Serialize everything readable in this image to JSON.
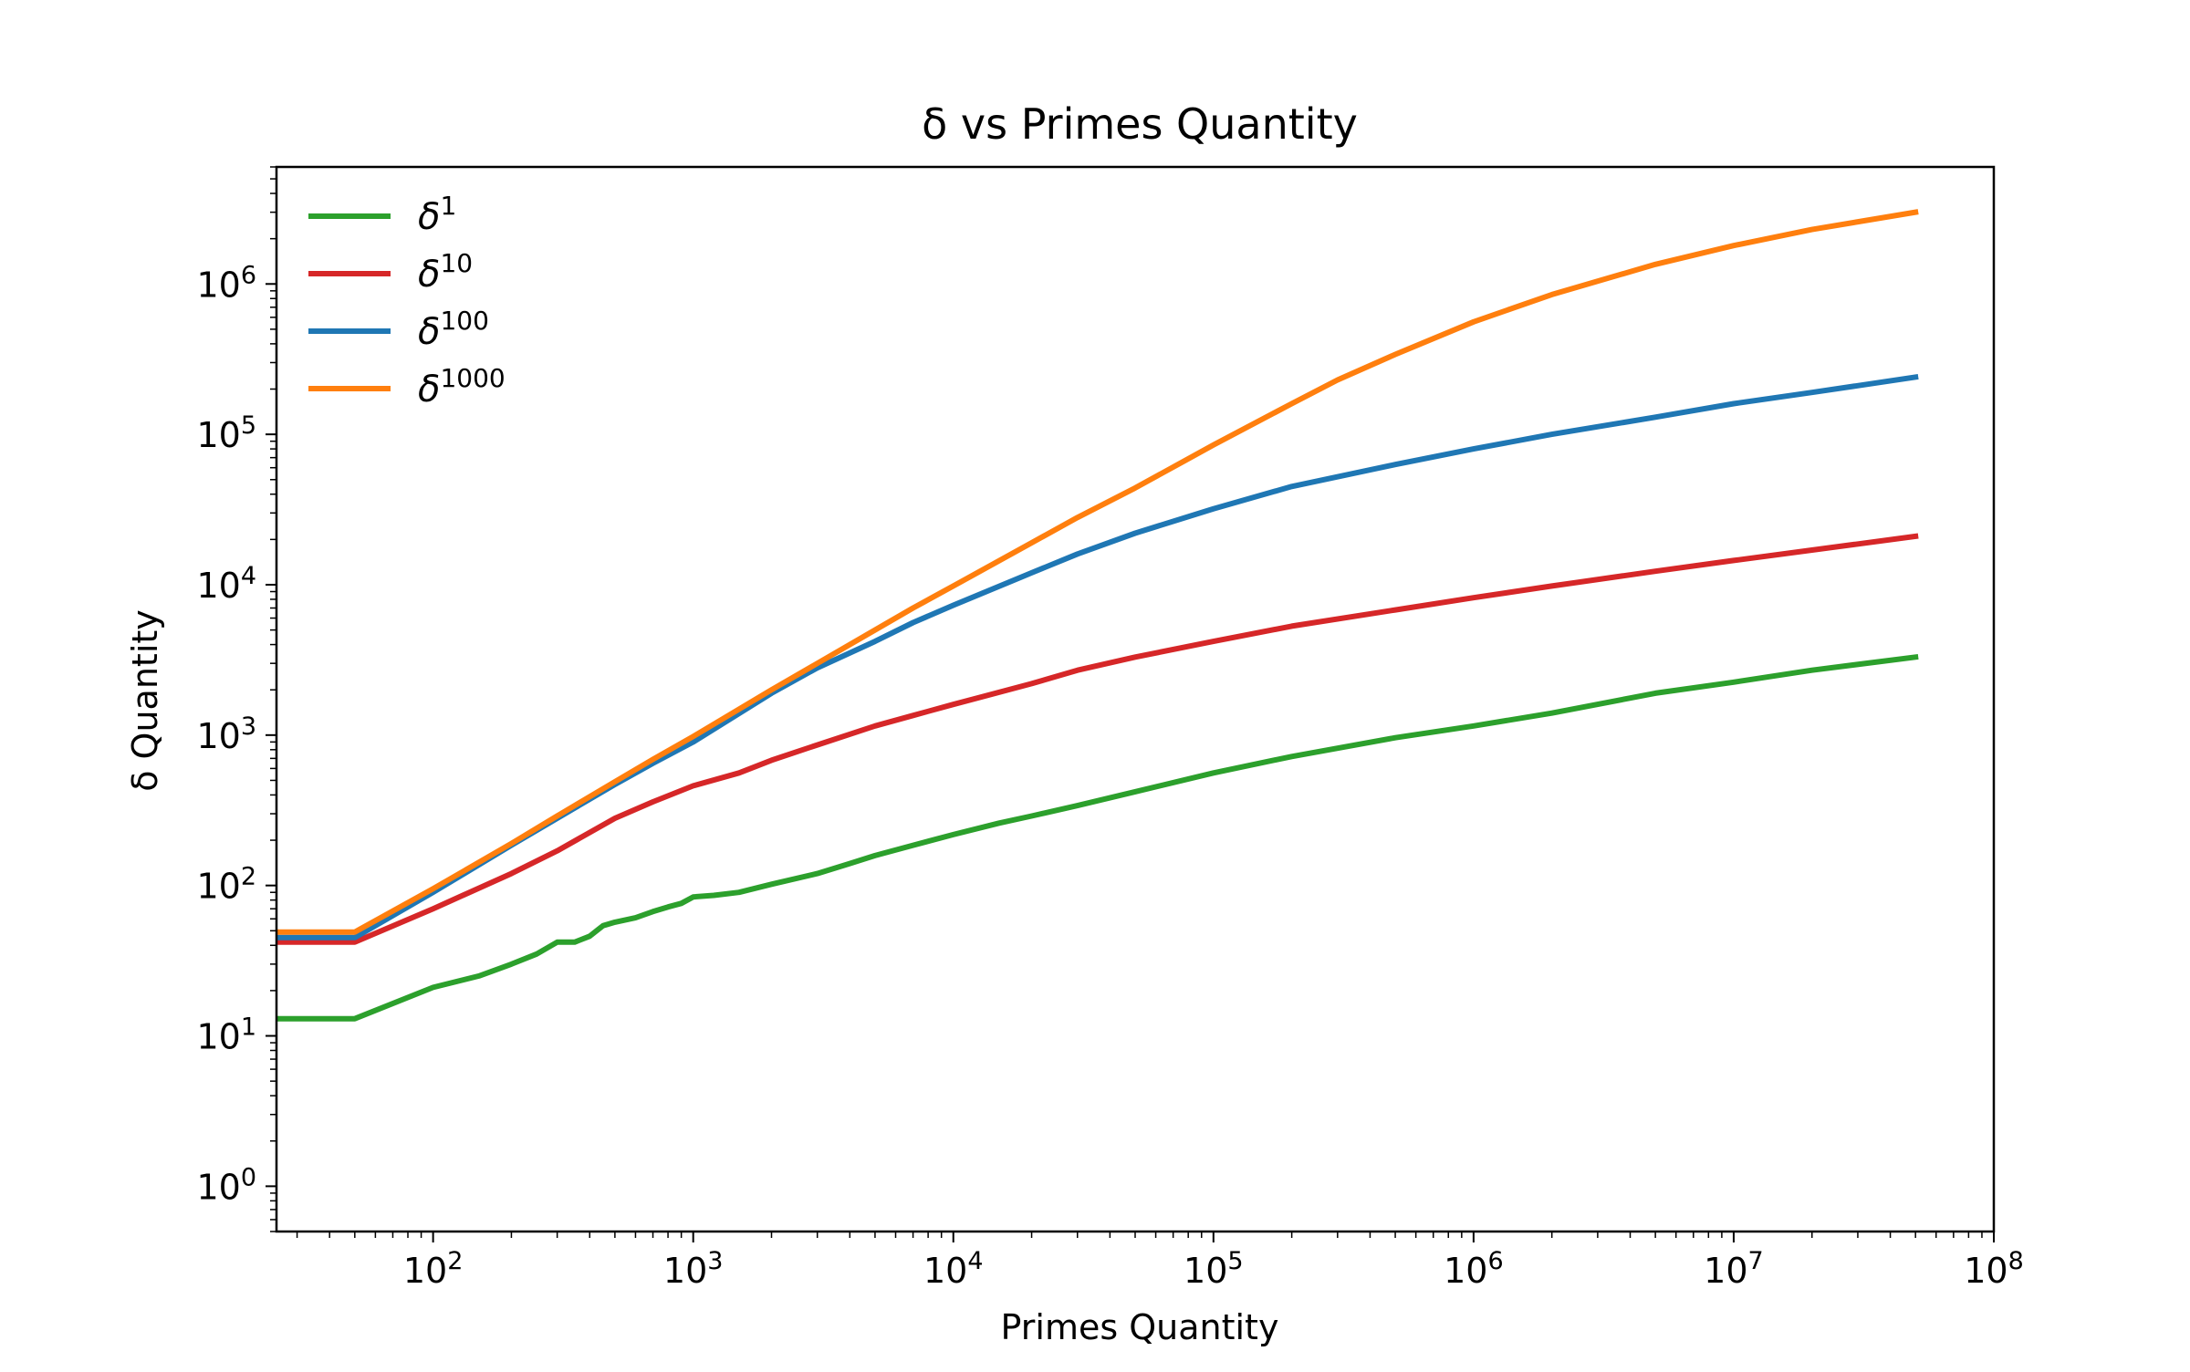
{
  "chart_data": {
    "type": "line",
    "title": "δ vs Primes Quantity",
    "xlabel": "Primes Quantity",
    "ylabel": "δ Quantity",
    "xscale": "log",
    "yscale": "log",
    "xlim": [
      25,
      100000000
    ],
    "ylim": [
      0.5,
      6000000
    ],
    "grid": false,
    "legend_position": "top-left",
    "x_ticks": [
      {
        "base": "10",
        "exp": "2",
        "value": 100
      },
      {
        "base": "10",
        "exp": "3",
        "value": 1000
      },
      {
        "base": "10",
        "exp": "4",
        "value": 10000
      },
      {
        "base": "10",
        "exp": "5",
        "value": 100000
      },
      {
        "base": "10",
        "exp": "6",
        "value": 1000000
      },
      {
        "base": "10",
        "exp": "7",
        "value": 10000000
      },
      {
        "base": "10",
        "exp": "8",
        "value": 100000000
      }
    ],
    "y_ticks": [
      {
        "base": "10",
        "exp": "0",
        "value": 1
      },
      {
        "base": "10",
        "exp": "1",
        "value": 10
      },
      {
        "base": "10",
        "exp": "2",
        "value": 100
      },
      {
        "base": "10",
        "exp": "3",
        "value": 1000
      },
      {
        "base": "10",
        "exp": "4",
        "value": 10000
      },
      {
        "base": "10",
        "exp": "5",
        "value": 100000
      },
      {
        "base": "10",
        "exp": "6",
        "value": 1000000
      }
    ],
    "series": [
      {
        "name": "δ1",
        "symbol": "δ",
        "sup": "1",
        "color": "#2ca02c",
        "points": [
          [
            25,
            13
          ],
          [
            50,
            13
          ],
          [
            100,
            21
          ],
          [
            150,
            25
          ],
          [
            200,
            30
          ],
          [
            250,
            35
          ],
          [
            300,
            42
          ],
          [
            350,
            42
          ],
          [
            400,
            46
          ],
          [
            450,
            54
          ],
          [
            500,
            57
          ],
          [
            600,
            61
          ],
          [
            700,
            67
          ],
          [
            800,
            72
          ],
          [
            900,
            76
          ],
          [
            1000,
            84
          ],
          [
            1200,
            86
          ],
          [
            1500,
            90
          ],
          [
            2000,
            102
          ],
          [
            3000,
            120
          ],
          [
            4000,
            140
          ],
          [
            5000,
            158
          ],
          [
            7000,
            185
          ],
          [
            10000,
            218
          ],
          [
            15000,
            260
          ],
          [
            20000,
            290
          ],
          [
            30000,
            340
          ],
          [
            50000,
            420
          ],
          [
            100000,
            560
          ],
          [
            200000,
            720
          ],
          [
            500000,
            960
          ],
          [
            1000000,
            1150
          ],
          [
            2000000,
            1400
          ],
          [
            5000000,
            1900
          ],
          [
            10000000,
            2250
          ],
          [
            20000000,
            2700
          ],
          [
            50000000,
            3300
          ]
        ]
      },
      {
        "name": "δ10",
        "symbol": "δ",
        "sup": "10",
        "color": "#d62728",
        "points": [
          [
            25,
            42
          ],
          [
            50,
            42
          ],
          [
            100,
            70
          ],
          [
            200,
            120
          ],
          [
            300,
            170
          ],
          [
            500,
            280
          ],
          [
            700,
            360
          ],
          [
            1000,
            460
          ],
          [
            1500,
            560
          ],
          [
            2000,
            680
          ],
          [
            3000,
            860
          ],
          [
            5000,
            1150
          ],
          [
            7000,
            1350
          ],
          [
            10000,
            1600
          ],
          [
            20000,
            2200
          ],
          [
            30000,
            2700
          ],
          [
            50000,
            3300
          ],
          [
            100000,
            4200
          ],
          [
            200000,
            5300
          ],
          [
            500000,
            6800
          ],
          [
            1000000,
            8200
          ],
          [
            2000000,
            9800
          ],
          [
            5000000,
            12300
          ],
          [
            10000000,
            14500
          ],
          [
            20000000,
            17000
          ],
          [
            50000000,
            21000
          ]
        ]
      },
      {
        "name": "δ100",
        "symbol": "δ",
        "sup": "100",
        "color": "#1f77b4",
        "points": [
          [
            25,
            45
          ],
          [
            50,
            45
          ],
          [
            100,
            90
          ],
          [
            200,
            185
          ],
          [
            300,
            280
          ],
          [
            500,
            470
          ],
          [
            700,
            650
          ],
          [
            1000,
            900
          ],
          [
            2000,
            1900
          ],
          [
            3000,
            2800
          ],
          [
            5000,
            4200
          ],
          [
            7000,
            5600
          ],
          [
            10000,
            7300
          ],
          [
            20000,
            12000
          ],
          [
            30000,
            16000
          ],
          [
            50000,
            22000
          ],
          [
            100000,
            32000
          ],
          [
            200000,
            45000
          ],
          [
            500000,
            63000
          ],
          [
            1000000,
            80000
          ],
          [
            2000000,
            100000
          ],
          [
            5000000,
            130000
          ],
          [
            10000000,
            160000
          ],
          [
            20000000,
            190000
          ],
          [
            50000000,
            240000
          ]
        ]
      },
      {
        "name": "δ1000",
        "symbol": "δ",
        "sup": "1000",
        "color": "#ff7f0e",
        "points": [
          [
            25,
            49
          ],
          [
            50,
            49
          ],
          [
            100,
            95
          ],
          [
            200,
            190
          ],
          [
            300,
            290
          ],
          [
            500,
            490
          ],
          [
            700,
            690
          ],
          [
            1000,
            980
          ],
          [
            2000,
            2000
          ],
          [
            3000,
            3000
          ],
          [
            5000,
            5000
          ],
          [
            7000,
            7000
          ],
          [
            10000,
            9800
          ],
          [
            20000,
            19000
          ],
          [
            30000,
            28000
          ],
          [
            50000,
            44000
          ],
          [
            100000,
            85000
          ],
          [
            200000,
            160000
          ],
          [
            300000,
            230000
          ],
          [
            500000,
            340000
          ],
          [
            1000000,
            560000
          ],
          [
            2000000,
            850000
          ],
          [
            5000000,
            1350000
          ],
          [
            10000000,
            1800000
          ],
          [
            20000000,
            2300000
          ],
          [
            50000000,
            3000000
          ]
        ]
      }
    ]
  }
}
